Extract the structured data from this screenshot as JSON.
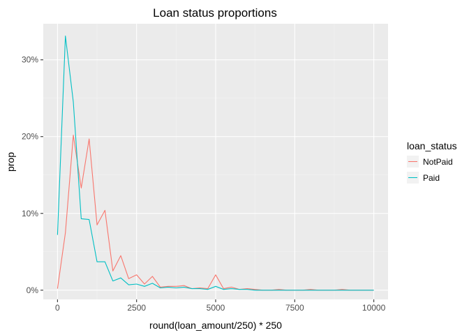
{
  "chart_data": {
    "type": "line",
    "title": "Loan status proportions",
    "xlabel": "round(loan_amount/250) * 250",
    "ylabel": "prop",
    "xlim": [
      -450,
      10450
    ],
    "ylim": [
      -0.012,
      0.347
    ],
    "x_ticks": [
      0,
      2500,
      5000,
      7500,
      10000
    ],
    "x_tick_labels": [
      "0",
      "2500",
      "5000",
      "7500",
      "10000"
    ],
    "x_minor_ticks": [
      1250,
      3750,
      6250,
      8750
    ],
    "y_ticks": [
      0,
      0.1,
      0.2,
      0.3
    ],
    "y_tick_labels": [
      "0%",
      "10%",
      "20%",
      "30%"
    ],
    "y_minor_ticks": [
      0.05,
      0.15,
      0.25
    ],
    "grid": true,
    "panel_background": "#ebebeb",
    "legend": {
      "title": "loan_status",
      "position": "right"
    },
    "series": [
      {
        "name": "NotPaid",
        "color": "#f8766d",
        "points": [
          [
            0,
            0.002
          ],
          [
            250,
            0.075
          ],
          [
            500,
            0.202
          ],
          [
            750,
            0.133
          ],
          [
            1000,
            0.197
          ],
          [
            1250,
            0.085
          ],
          [
            1500,
            0.104
          ],
          [
            1750,
            0.025
          ],
          [
            2000,
            0.045
          ],
          [
            2250,
            0.015
          ],
          [
            2500,
            0.02
          ],
          [
            2750,
            0.008
          ],
          [
            3000,
            0.018
          ],
          [
            3250,
            0.004
          ],
          [
            3500,
            0.005
          ],
          [
            3750,
            0.005
          ],
          [
            4000,
            0.006
          ],
          [
            4250,
            0.002
          ],
          [
            4500,
            0.003
          ],
          [
            4750,
            0.002
          ],
          [
            5000,
            0.02
          ],
          [
            5250,
            0.002
          ],
          [
            5500,
            0.004
          ],
          [
            5750,
            0.001
          ],
          [
            6000,
            0.002
          ],
          [
            6250,
            0.001
          ],
          [
            6500,
            0.0
          ],
          [
            6750,
            0.0
          ],
          [
            7000,
            0.001
          ],
          [
            7250,
            0.0
          ],
          [
            7500,
            0.0
          ],
          [
            7750,
            0.0
          ],
          [
            8000,
            0.001
          ],
          [
            8250,
            0.0
          ],
          [
            8500,
            0.0
          ],
          [
            8750,
            0.0
          ],
          [
            9000,
            0.001
          ],
          [
            9250,
            0.0
          ],
          [
            9500,
            0.0
          ],
          [
            9750,
            0.0
          ],
          [
            10000,
            0.0
          ]
        ]
      },
      {
        "name": "Paid",
        "color": "#00bfc4",
        "points": [
          [
            0,
            0.072
          ],
          [
            250,
            0.331
          ],
          [
            500,
            0.245
          ],
          [
            750,
            0.093
          ],
          [
            1000,
            0.092
          ],
          [
            1250,
            0.037
          ],
          [
            1500,
            0.037
          ],
          [
            1750,
            0.012
          ],
          [
            2000,
            0.016
          ],
          [
            2250,
            0.007
          ],
          [
            2500,
            0.008
          ],
          [
            2750,
            0.005
          ],
          [
            3000,
            0.009
          ],
          [
            3250,
            0.003
          ],
          [
            3500,
            0.004
          ],
          [
            3750,
            0.003
          ],
          [
            4000,
            0.004
          ],
          [
            4250,
            0.002
          ],
          [
            4500,
            0.002
          ],
          [
            4750,
            0.001
          ],
          [
            5000,
            0.005
          ],
          [
            5250,
            0.001
          ],
          [
            5500,
            0.002
          ],
          [
            5750,
            0.001
          ],
          [
            6000,
            0.001
          ],
          [
            6250,
            0.0
          ],
          [
            6500,
            0.0
          ],
          [
            6750,
            0.0
          ],
          [
            7000,
            0.0
          ],
          [
            7250,
            0.0
          ],
          [
            7500,
            0.0
          ],
          [
            7750,
            0.0
          ],
          [
            8000,
            0.0
          ],
          [
            8250,
            0.0
          ],
          [
            8500,
            0.0
          ],
          [
            8750,
            0.0
          ],
          [
            9000,
            0.0
          ],
          [
            9250,
            0.0
          ],
          [
            9500,
            0.0
          ],
          [
            9750,
            0.0
          ],
          [
            10000,
            0.0
          ]
        ]
      }
    ]
  }
}
